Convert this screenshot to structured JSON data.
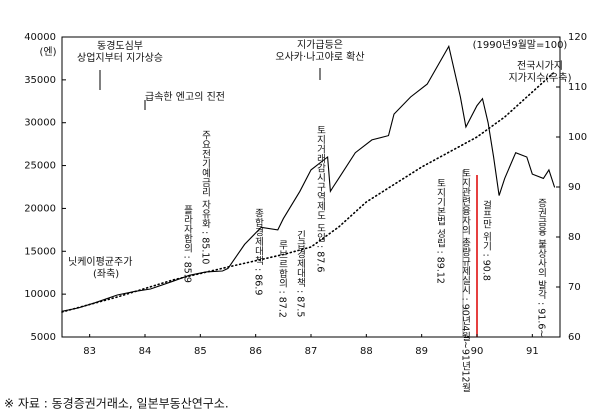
{
  "chart_data": {
    "type": "line",
    "y_label": "(엔)",
    "y2_label": "(1990년9월말=100)",
    "xlim": [
      83,
      92
    ],
    "xticks": [
      {
        "value": 83.5,
        "label": "83"
      },
      {
        "value": 84.5,
        "label": "84"
      },
      {
        "value": 85.5,
        "label": "85"
      },
      {
        "value": 86.5,
        "label": "86"
      },
      {
        "value": 87.5,
        "label": "87"
      },
      {
        "value": 88.5,
        "label": "88"
      },
      {
        "value": 89.5,
        "label": "89"
      },
      {
        "value": 90.5,
        "label": "90"
      },
      {
        "value": 91.5,
        "label": "91"
      }
    ],
    "ylim": [
      5000,
      40000
    ],
    "yticks": [
      5000,
      10000,
      15000,
      20000,
      25000,
      30000,
      35000,
      40000
    ],
    "y2lim": [
      60,
      120
    ],
    "y2ticks": [
      60,
      70,
      80,
      90,
      100,
      110,
      120
    ],
    "series": [
      {
        "name": "닛케이평균주가",
        "name_note": "(좌축)",
        "color": "#000000",
        "style": "solid",
        "x": [
          83.0,
          83.3,
          83.6,
          84.0,
          84.3,
          84.6,
          85.0,
          85.3,
          85.6,
          85.9,
          86.0,
          86.3,
          86.6,
          86.9,
          87.0,
          87.3,
          87.5,
          87.8,
          87.85,
          87.9,
          88.0,
          88.3,
          88.6,
          88.9,
          89.0,
          89.3,
          89.6,
          89.99,
          90.2,
          90.3,
          90.5,
          90.6,
          90.7,
          90.8,
          90.9,
          91.0,
          91.2,
          91.4,
          91.5,
          91.7,
          91.8,
          91.9
        ],
        "values": [
          8000,
          8400,
          9000,
          9900,
          10300,
          10600,
          11500,
          12200,
          12600,
          12700,
          13000,
          15800,
          17800,
          17500,
          18800,
          22000,
          24500,
          26000,
          22000,
          22500,
          23500,
          26500,
          28000,
          28500,
          31000,
          33000,
          34500,
          38900,
          33000,
          29500,
          32000,
          32800,
          30000,
          26000,
          21500,
          23500,
          26500,
          26000,
          24000,
          23500,
          24500,
          22500
        ]
      },
      {
        "name": "전국시가지",
        "name_note": "지가지수(우축)",
        "color": "#000000",
        "style": "dotted",
        "axis": "y2",
        "x": [
          83.0,
          84.0,
          85.0,
          86.0,
          87.0,
          87.5,
          88.0,
          88.5,
          89.0,
          89.5,
          90.0,
          90.5,
          91.0,
          91.5,
          91.9
        ],
        "values": [
          65,
          68,
          71.4,
          74,
          76.5,
          78,
          82,
          87,
          90.5,
          94,
          97,
          100,
          104,
          109,
          113
        ]
      }
    ],
    "annotations": [
      [
        "동경도심부",
        "상업지부터 지가상승"
      ],
      [
        "급속한 엔고의 진전"
      ],
      [
        "지가급등은",
        "오사카·나고야로 확산"
      ]
    ],
    "vertical_annotations": [
      "플라자합의 : 85.9",
      "주요전기예금리 자유화 : 85.10",
      "종합경제대책 : 86.9",
      "루브르합의 : 87.2",
      "긴급경제대책 : 87.5",
      "토지거래감시구역제도 도입 : 87.6",
      "토지기본법 성립 : 89.12",
      "토지관련융자의 총량규제실시 : 90년4월~91년12월",
      "걸프만 위기 : 90.8",
      "증권금융 불상사의 발각 : 91.6~"
    ]
  },
  "source": "※ 자료 : 동경증권거래소, 일본부동산연구소."
}
